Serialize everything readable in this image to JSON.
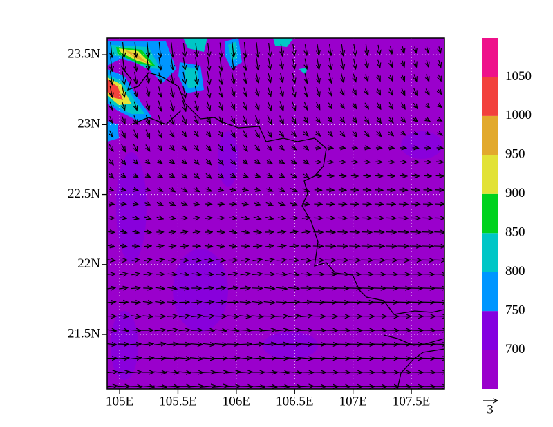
{
  "chart_data": {
    "type": "contour-map",
    "xlim": [
      104.893,
      107.784
    ],
    "ylim": [
      21.11,
      23.619
    ],
    "xticks": [
      {
        "value": 105,
        "label": "105E"
      },
      {
        "value": 105.5,
        "label": "105.5E"
      },
      {
        "value": 106,
        "label": "106E"
      },
      {
        "value": 106.5,
        "label": "106.5E"
      },
      {
        "value": 107,
        "label": "107E"
      },
      {
        "value": 107.5,
        "label": "107.5E"
      }
    ],
    "yticks": [
      {
        "value": 21.5,
        "label": "21.5N"
      },
      {
        "value": 22,
        "label": "22N"
      },
      {
        "value": 22.5,
        "label": "22.5N"
      },
      {
        "value": 23,
        "label": "23N"
      },
      {
        "value": 23.5,
        "label": "23.5N"
      }
    ],
    "grid": true,
    "colorbar": {
      "levels": [
        700,
        750,
        800,
        850,
        900,
        950,
        1000,
        1050
      ],
      "colors": [
        "#9a00cc",
        "#8400e0",
        "#0096ff",
        "#00c6c6",
        "#00d21e",
        "#e2e236",
        "#e2a92c",
        "#f2413c",
        "#ee118a"
      ]
    },
    "reference_vector": 3
  }
}
